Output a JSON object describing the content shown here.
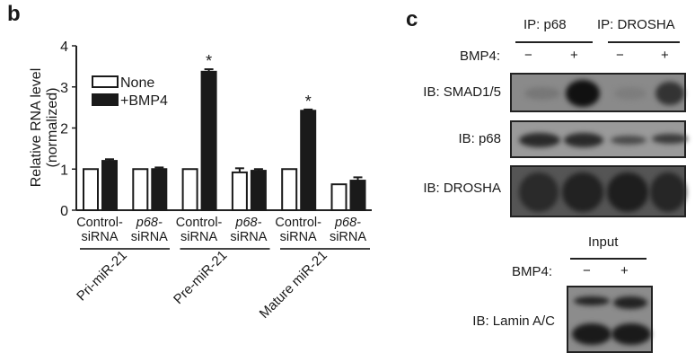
{
  "panel_b_letter": "b",
  "panel_c_letter": "c",
  "chart_data": {
    "type": "bar",
    "ylabel": [
      "Relative RNA level",
      "(normalized)"
    ],
    "ylim": [
      0,
      4
    ],
    "yticks": [
      "0",
      "1",
      "2",
      "3",
      "4"
    ],
    "categories": [
      {
        "line1": "Control-",
        "line2": "siRNA",
        "italic": false
      },
      {
        "line1": "p68-",
        "line2": "siRNA",
        "italic": true
      },
      {
        "line1": "Control-",
        "line2": "siRNA",
        "italic": false
      },
      {
        "line1": "p68-",
        "line2": "siRNA",
        "italic": true
      },
      {
        "line1": "Control-",
        "line2": "siRNA",
        "italic": false
      },
      {
        "line1": "p68-",
        "line2": "siRNA",
        "italic": true
      }
    ],
    "groups": [
      "Pri-miR-21",
      "Pre-miR-21",
      "Mature miR-21"
    ],
    "series": [
      {
        "name": "None",
        "color": "#ffffff",
        "values": [
          1.0,
          1.0,
          1.0,
          0.92,
          1.0,
          0.63
        ],
        "errors": [
          0,
          0,
          0,
          0.1,
          0,
          0
        ]
      },
      {
        "name": "+BMP4",
        "color": "#1a1a1a",
        "values": [
          1.2,
          1.0,
          3.37,
          0.96,
          2.42,
          0.72
        ],
        "errors": [
          0.04,
          0.04,
          0.06,
          0.04,
          0.03,
          0.08
        ]
      }
    ],
    "annotations": [
      {
        "category": 2,
        "series": 1,
        "text": "*"
      },
      {
        "category": 4,
        "series": 1,
        "text": "*"
      }
    ],
    "legend": "top-left"
  },
  "blot": {
    "ip_headers": [
      "IP: p68",
      "IP: DROSHA"
    ],
    "bmp4_label": "BMP4:",
    "lane_signs": [
      "−",
      "+",
      "−",
      "+"
    ],
    "rows": [
      "IB: SMAD1/5",
      "IB: p68",
      "IB: DROSHA"
    ],
    "input_header": "Input",
    "input_bmp4_label": "BMP4:",
    "input_signs": [
      "−",
      "+"
    ],
    "input_row": "IB: Lamin A/C"
  }
}
